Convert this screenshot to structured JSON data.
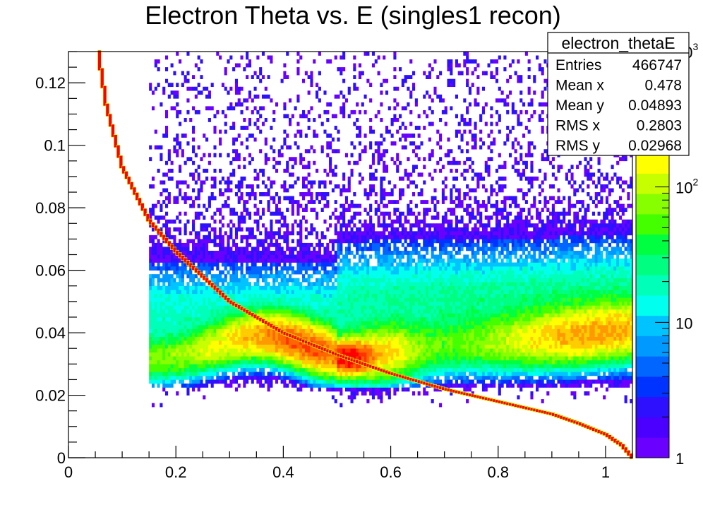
{
  "chart_data": {
    "type": "heatmap",
    "title": "Electron Theta vs. E (singles1 recon)",
    "xlabel": "",
    "ylabel": "",
    "xlim": [
      0,
      1.05
    ],
    "ylim": [
      0,
      0.13
    ],
    "x_ticks": [
      {
        "value": 0,
        "label": "0"
      },
      {
        "value": 0.2,
        "label": "0.2"
      },
      {
        "value": 0.4,
        "label": "0.4"
      },
      {
        "value": 0.6,
        "label": "0.6"
      },
      {
        "value": 0.8,
        "label": "0.8"
      },
      {
        "value": 1.0,
        "label": "1"
      }
    ],
    "y_ticks": [
      {
        "value": 0,
        "label": "0"
      },
      {
        "value": 0.02,
        "label": "0.02"
      },
      {
        "value": 0.04,
        "label": "0.04"
      },
      {
        "value": 0.06,
        "label": "0.06"
      },
      {
        "value": 0.08,
        "label": "0.08"
      },
      {
        "value": 0.1,
        "label": "0.1"
      },
      {
        "value": 0.12,
        "label": "0.12"
      }
    ],
    "z_scale": "log",
    "z_range": [
      1,
      1000
    ],
    "z_ticks": [
      {
        "value": 1,
        "label": "1",
        "exp": ""
      },
      {
        "value": 10,
        "label": "10",
        "exp": ""
      },
      {
        "value": 100,
        "label": "10",
        "exp": "2"
      },
      {
        "value": 1000,
        "label": "10",
        "exp": "3"
      }
    ],
    "palette": [
      "#6a00ff",
      "#4b00ff",
      "#2e10ff",
      "#0033ff",
      "#0066ff",
      "#0099ff",
      "#00c3ff",
      "#00ffee",
      "#00ffb8",
      "#00ff80",
      "#00ff40",
      "#44ff00",
      "#88ff00",
      "#c8ff00",
      "#ffff00",
      "#ffcc00",
      "#ff9900",
      "#ff6600",
      "#ff3300",
      "#ff0000"
    ],
    "bins": {
      "nx": 210,
      "ny": 104
    },
    "density_regions": [
      {
        "name": "low-energy band",
        "x": [
          0.15,
          0.5
        ],
        "y_center": 0.033,
        "y_width": 0.005,
        "peak": 450
      },
      {
        "name": "high-energy band",
        "x": [
          0.5,
          1.05
        ],
        "y_center_start": 0.032,
        "y_center_end": 0.04,
        "peak": 400
      },
      {
        "name": "kinematic peak",
        "x": 0.52,
        "y": 0.032,
        "peak": 1000
      },
      {
        "name": "sparse scatter",
        "x": [
          0.15,
          1.05
        ],
        "y": [
          0.05,
          0.13
        ],
        "level": "1-3"
      }
    ],
    "curve": {
      "name": "kinematic curve",
      "color": "#ff0000",
      "x": [
        0.055,
        0.07,
        0.1,
        0.15,
        0.2,
        0.3,
        0.4,
        0.5,
        0.6,
        0.7,
        0.8,
        0.9,
        0.95,
        1.0,
        1.03,
        1.05
      ],
      "y": [
        0.13,
        0.113,
        0.093,
        0.076,
        0.066,
        0.05,
        0.04,
        0.033,
        0.027,
        0.022,
        0.018,
        0.014,
        0.011,
        0.0075,
        0.004,
        0.0
      ]
    }
  },
  "stats": {
    "name": "electron_thetaE",
    "rows": [
      {
        "label": "Entries",
        "value": "466747"
      },
      {
        "label": "Mean x",
        "value": "0.478"
      },
      {
        "label": "Mean y",
        "value": "0.04893"
      },
      {
        "label": "RMS x",
        "value": "0.2803"
      },
      {
        "label": "RMS y",
        "value": "0.02968"
      }
    ]
  }
}
